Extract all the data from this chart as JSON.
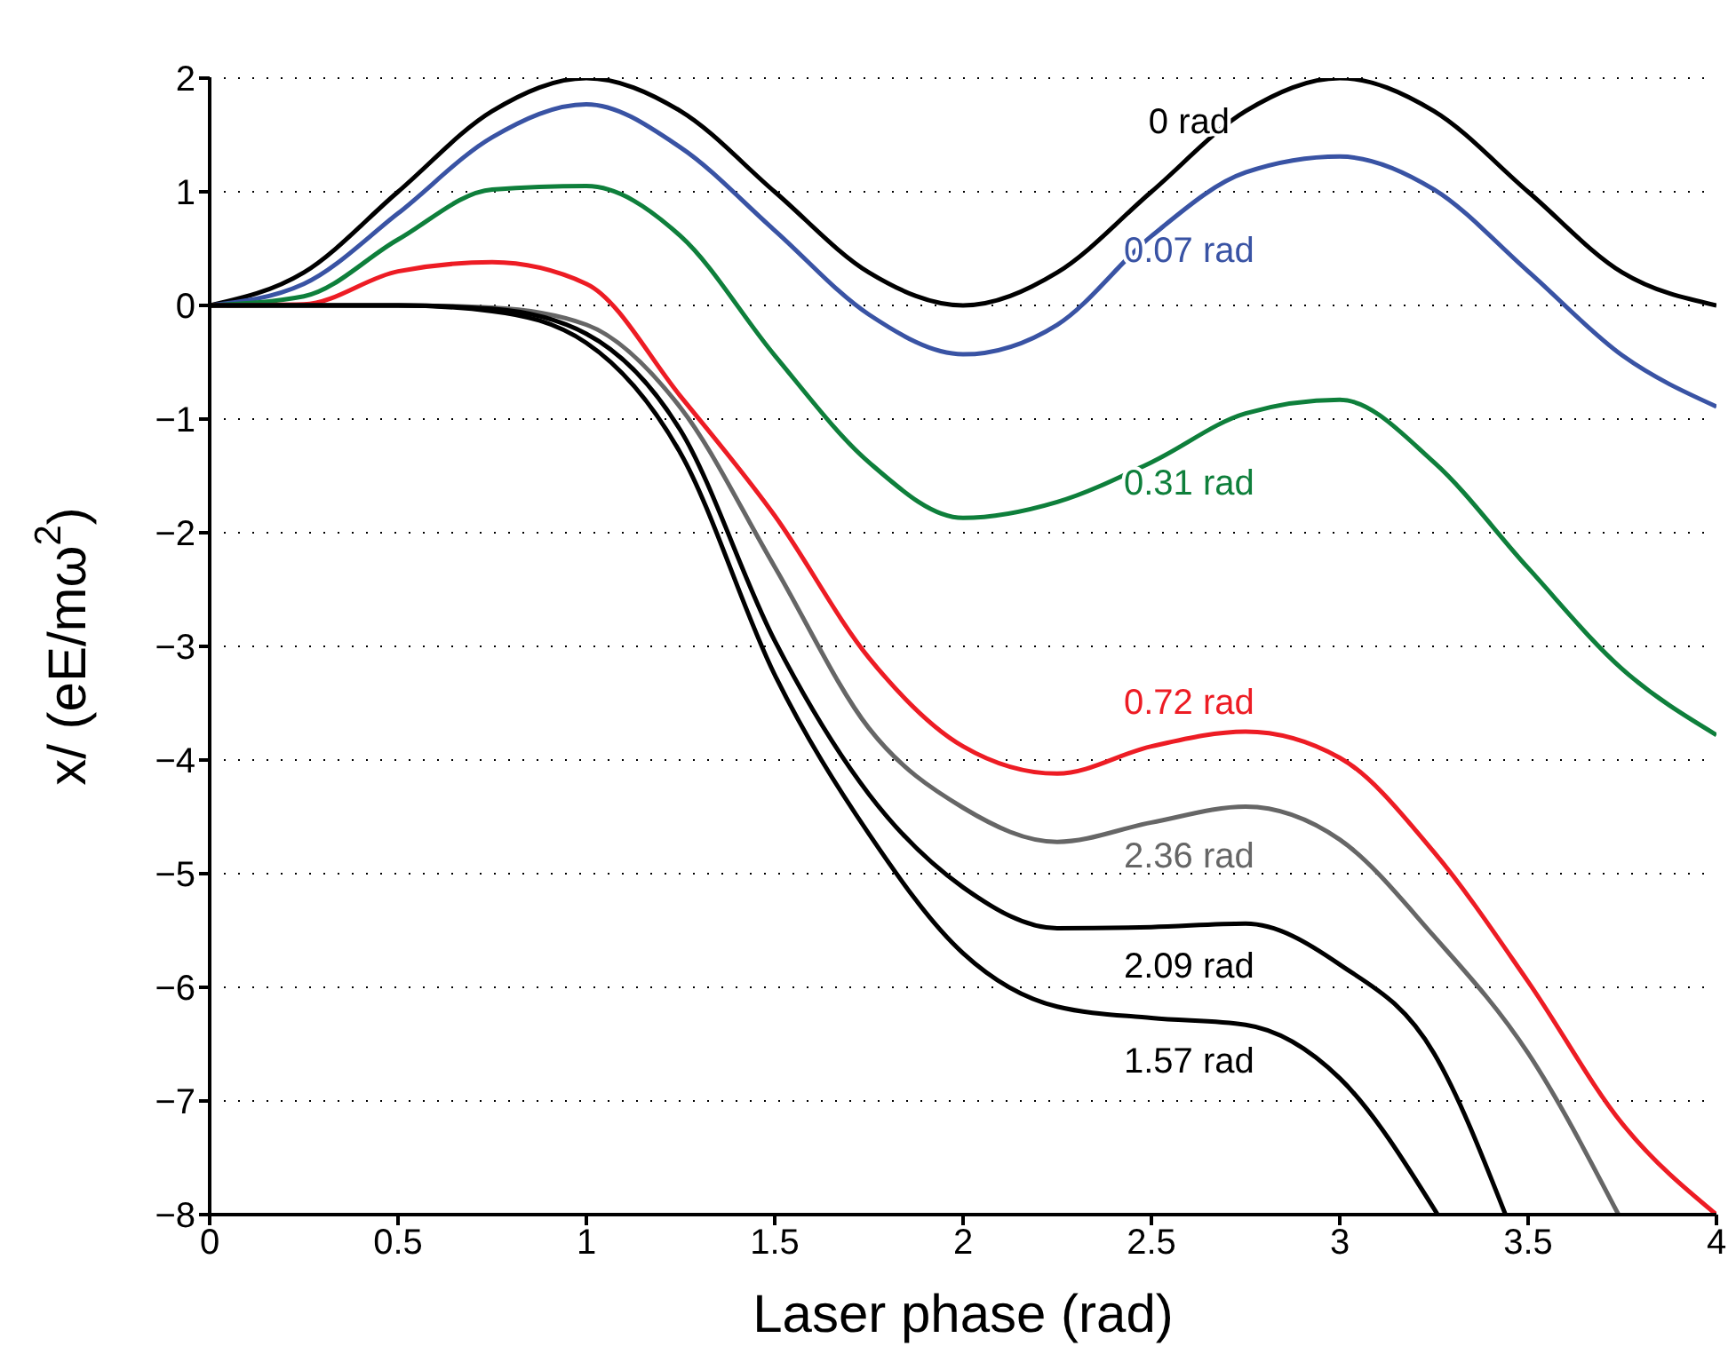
{
  "chart_data": {
    "type": "line",
    "xlabel": "Laser phase (rad)",
    "ylabel": "x/ (eE/mω$^{2}$)",
    "x": [
      0,
      0.25,
      0.5,
      0.75,
      1,
      1.25,
      1.5,
      1.75,
      2,
      2.25,
      2.5,
      2.75,
      3,
      3.25,
      3.5,
      3.75,
      4
    ],
    "series": [
      {
        "name": "0 rad",
        "color": "#000000",
        "values": [
          0,
          0.29,
          1,
          1.71,
          2,
          1.71,
          1,
          0.29,
          0,
          0.29,
          1,
          1.71,
          2,
          1.71,
          1,
          0.29,
          0
        ]
      },
      {
        "name": "0.07 rad",
        "color": "#3953a4",
        "values": [
          0,
          0.19,
          0.81,
          1.48,
          1.77,
          1.39,
          0.66,
          -0.08,
          -0.43,
          -0.17,
          0.61,
          1.17,
          1.31,
          1.02,
          0.3,
          -0.44,
          -0.89
        ]
      },
      {
        "name": "0.31 rad",
        "color": "#0e7f3b",
        "values": [
          0,
          0.08,
          0.58,
          1.02,
          1.05,
          0.61,
          -0.44,
          -1.38,
          -1.87,
          -1.73,
          -1.38,
          -0.95,
          -0.83,
          -1.38,
          -2.31,
          -3.2,
          -3.78
        ]
      },
      {
        "name": "0.72 rad",
        "color": "#ed1c24",
        "values": [
          0,
          0.01,
          0.3,
          0.38,
          0.19,
          -0.8,
          -1.85,
          -3.1,
          -3.88,
          -4.12,
          -3.88,
          -3.75,
          -3.98,
          -4.81,
          -5.95,
          -7.2,
          -8
        ]
      },
      {
        "name": "2.36 rad",
        "color": "#666666",
        "x": [
          0,
          0.25,
          0.5,
          0.75,
          1,
          1.25,
          1.5,
          1.75,
          2,
          2.25,
          2.5,
          2.75,
          3,
          3.25,
          3.5,
          3.74
        ],
        "values": [
          0,
          0,
          0,
          -0.02,
          -0.17,
          -0.9,
          -2.3,
          -3.72,
          -4.42,
          -4.72,
          -4.55,
          -4.41,
          -4.7,
          -5.55,
          -6.58,
          -8
        ]
      },
      {
        "name": "2.09 rad",
        "color": "#000000",
        "x": [
          0,
          0.25,
          0.5,
          0.75,
          1,
          1.25,
          1.5,
          1.75,
          2,
          2.25,
          2.5,
          2.75,
          3,
          3.25,
          3.44
        ],
        "values": [
          0,
          0,
          0,
          -0.03,
          -0.25,
          -1.1,
          -2.95,
          -4.3,
          -5.12,
          -5.48,
          -5.47,
          -5.44,
          -5.8,
          -6.58,
          -8
        ]
      },
      {
        "name": "1.57 rad",
        "color": "#000000",
        "x": [
          0,
          0.25,
          0.5,
          0.75,
          1,
          1.25,
          1.5,
          1.75,
          2,
          2.25,
          2.5,
          2.75,
          3,
          3.26
        ],
        "values": [
          0,
          0,
          0,
          -0.05,
          -0.33,
          -1.3,
          -3.25,
          -4.65,
          -5.7,
          -6.17,
          -6.27,
          -6.33,
          -6.8,
          -8
        ]
      }
    ],
    "xlim": [
      0,
      4
    ],
    "xticks": [
      0,
      0.5,
      1,
      1.5,
      2,
      2.5,
      3,
      3.5,
      4
    ],
    "ylim": [
      -8,
      2
    ],
    "yticks": [
      -8,
      -7,
      -6,
      -5,
      -4,
      -3,
      -2,
      -1,
      0,
      1,
      2
    ],
    "grid": "y"
  }
}
